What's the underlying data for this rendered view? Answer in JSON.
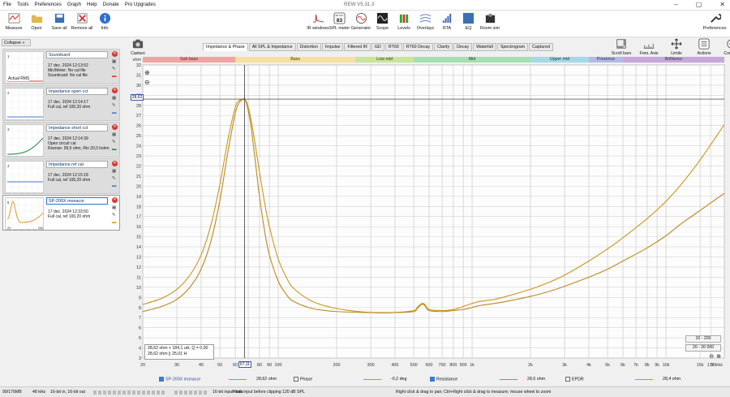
{
  "menu": [
    "File",
    "Tools",
    "Preferences",
    "Graph",
    "Help",
    "Donate",
    "Pro Upgrades"
  ],
  "window_title": "REW V5.31.3",
  "toolbar_left": [
    {
      "label": "Measure",
      "icon": "microphone-icon"
    },
    {
      "label": "Open",
      "icon": "folder-icon"
    },
    {
      "label": "Save all",
      "icon": "save-icon"
    },
    {
      "label": "Remove all",
      "icon": "remove-all-icon"
    },
    {
      "label": "Info",
      "icon": "info-icon"
    }
  ],
  "toolbar_center": [
    {
      "label": "IR windows",
      "icon": "ir-windows-icon"
    },
    {
      "label": "SPL meter",
      "icon": "spl-meter-icon",
      "value": "83",
      "tag": "dB SPL"
    },
    {
      "label": "Generator",
      "icon": "generator-icon"
    },
    {
      "label": "Scope",
      "icon": "scope-icon"
    },
    {
      "label": "Levels",
      "icon": "levels-icon"
    },
    {
      "label": "Overlays",
      "icon": "overlays-icon"
    },
    {
      "label": "RTA",
      "icon": "rta-icon"
    },
    {
      "label": "EQ",
      "icon": "eq-icon"
    },
    {
      "label": "Room sim",
      "icon": "room-sim-icon"
    }
  ],
  "preferences_label": "Preferences",
  "collapse_label": "Collapse «",
  "measurements": [
    {
      "name": "Soundcard",
      "info": "17 dec. 2024 12:13:52\nMic/Meter: No cal file\nSoundcard: No cal file",
      "selected": false
    },
    {
      "name": "Impedance open cct",
      "info": "17 dec. 2024 12:14:17\nFull cal, ref 100,20 ohm",
      "selected": false
    },
    {
      "name": "Impedance short cct",
      "info": "17 dec. 2024 12:14:39\nOpen circuit cal\nRsense: 99,5 ohm, Rin 20,0 kohm",
      "selected": false
    },
    {
      "name": "Impedance ref cal",
      "info": "17 dec. 2024 12:15:18\nFull cal, ref 100,20 ohm",
      "selected": false
    },
    {
      "name": "SP-200X monacor",
      "info": "17 dec. 2024 12:33:50\nFull cal, ref 100,20 ohm",
      "selected": true
    }
  ],
  "thumb_label": "Actual RMS",
  "thumb_axis": [
    "20",
    "20k"
  ],
  "capture_label": "Capture",
  "tabs": [
    "Impedance & Phase",
    "All SPL & Impedance",
    "Distortion",
    "Impulse",
    "Filtered IR",
    "GD",
    "RT60",
    "RT60 Decay",
    "Clarity",
    "Decay",
    "Waterfall",
    "Spectrogram",
    "Captured"
  ],
  "active_tab": "Impedance & Phase",
  "right_buttons": [
    {
      "label": "Scroll bars",
      "icon": "scrollbars-icon"
    },
    {
      "label": "Freq. Axis",
      "icon": "freq-axis-icon"
    },
    {
      "label": "Limits",
      "icon": "limits-icon"
    },
    {
      "label": "Actions",
      "icon": "actions-icon"
    },
    {
      "label": "Controls",
      "icon": "controls-icon"
    }
  ],
  "bands": [
    {
      "label": "Sub bass",
      "f1": 20,
      "f2": 60,
      "color": "#f4a3a3"
    },
    {
      "label": "Bass",
      "f1": 60,
      "f2": 250,
      "color": "#f5e19b"
    },
    {
      "label": "Low mid",
      "f1": 250,
      "f2": 500,
      "color": "#c9e59a"
    },
    {
      "label": "Mid",
      "f1": 500,
      "f2": 2000,
      "color": "#a6dfb2"
    },
    {
      "label": "Upper mid",
      "f1": 2000,
      "f2": 4000,
      "color": "#a6d9e6"
    },
    {
      "label": "Presence",
      "f1": 4000,
      "f2": 6000,
      "color": "#b4b9e8"
    },
    {
      "label": "Brilliance",
      "f1": 6000,
      "f2": 20000,
      "color": "#c6a7dc"
    }
  ],
  "chart_data": {
    "type": "line",
    "ylabel": "ohm",
    "xlim": [
      20,
      20000
    ],
    "ylim": [
      3,
      32
    ],
    "x_scale": "log",
    "grid": true,
    "x_ticks": [
      "20",
      "30",
      "40",
      "50",
      "60",
      "70",
      "80",
      "90",
      "100",
      "200",
      "300",
      "400",
      "500",
      "600",
      "700",
      "800",
      "900",
      "1k",
      "2k",
      "3k",
      "4k",
      "5k",
      "6k",
      "7k",
      "8k",
      "9k",
      "10k",
      "15k",
      "17k",
      "20kHz"
    ],
    "x_tick_values": [
      20,
      30,
      40,
      50,
      60,
      70,
      80,
      90,
      100,
      200,
      300,
      400,
      500,
      600,
      700,
      800,
      900,
      1000,
      2000,
      3000,
      4000,
      5000,
      6000,
      7000,
      8000,
      9000,
      10000,
      15000,
      17000,
      20000
    ],
    "y_ticks": [
      3,
      4,
      5,
      6,
      7,
      8,
      9,
      10,
      11,
      12,
      13,
      14,
      15,
      16,
      17,
      18,
      19,
      20,
      21,
      22,
      23,
      24,
      25,
      26,
      27,
      28,
      29,
      30,
      31,
      32
    ],
    "series": [
      {
        "name": "SP-200X monacor",
        "color": "#c9971e",
        "x": [
          20,
          25,
          30,
          35,
          40,
          45,
          50,
          55,
          60,
          63,
          66,
          67.1,
          69,
          72,
          76,
          80,
          85,
          90,
          100,
          110,
          120,
          150,
          200,
          300,
          400,
          500,
          520,
          550,
          570,
          600,
          700,
          800,
          900,
          1000,
          1100,
          1300,
          1500,
          2000,
          2500,
          3000,
          4000,
          5000,
          6000,
          8000,
          10000,
          12000,
          15000,
          20000
        ],
        "y": [
          8.3,
          8.9,
          9.8,
          11.2,
          13.2,
          16.2,
          20.2,
          24.6,
          27.8,
          28.5,
          28.62,
          28.6,
          28.2,
          26.8,
          24.2,
          21.4,
          18.4,
          16.0,
          12.8,
          11.0,
          9.9,
          8.6,
          7.9,
          7.5,
          7.5,
          7.7,
          8.0,
          8.4,
          8.3,
          7.8,
          7.7,
          7.8,
          8.1,
          8.4,
          8.6,
          8.8,
          9.1,
          9.8,
          10.5,
          11.2,
          12.6,
          13.8,
          14.9,
          16.8,
          18.5,
          20.2,
          22.6,
          26.1
        ]
      },
      {
        "name": "Resistance",
        "color": "#b98a22",
        "x": [
          20,
          25,
          30,
          35,
          40,
          45,
          50,
          55,
          60,
          63,
          66,
          67.1,
          69,
          72,
          76,
          80,
          85,
          90,
          100,
          110,
          120,
          150,
          200,
          300,
          400,
          500,
          520,
          550,
          570,
          600,
          700,
          800,
          900,
          1000,
          1100,
          1300,
          1500,
          2000,
          2500,
          3000,
          4000,
          5000,
          6000,
          8000,
          10000,
          12000,
          15000,
          20000
        ],
        "y": [
          7.6,
          8.1,
          8.8,
          10.0,
          11.8,
          14.6,
          18.6,
          23.4,
          27.2,
          28.3,
          28.6,
          28.6,
          28.0,
          26.2,
          22.6,
          19.0,
          15.6,
          13.2,
          10.6,
          9.3,
          8.6,
          7.9,
          7.6,
          7.5,
          7.5,
          7.6,
          7.9,
          8.3,
          8.2,
          7.7,
          7.6,
          7.7,
          7.8,
          8.0,
          8.2,
          8.4,
          8.6,
          9.1,
          9.6,
          10.1,
          11.0,
          11.8,
          12.6,
          13.9,
          15.1,
          16.3,
          17.6,
          19.3
        ]
      }
    ]
  },
  "cursor": {
    "y_label": "28,62",
    "x_label": "67,11"
  },
  "readout": [
    "28,62 ohm + 184,1 uH, Q = 0,00",
    "28,62 ohm || 25,01 H"
  ],
  "range_buttons": [
    "10 - 200",
    "20 - 20 000"
  ],
  "legend": [
    {
      "name": "SP-200X monacor",
      "value": "28,62 ohm",
      "checked": true,
      "color": "#c9971e"
    },
    {
      "name": "Phase",
      "value": "-0,2 deg",
      "checked": false,
      "color": "#c9971e"
    },
    {
      "name": "Resistance",
      "value": "28,6 ohm",
      "checked": true,
      "color": "#b98a22"
    },
    {
      "name": "EPDR",
      "value": "28,4 ohm",
      "checked": false,
      "color": "#c9971e"
    }
  ],
  "status": [
    "99/176MB",
    "48 kHz",
    "16-bit in, 16-bit out",
    "16-bit input data",
    "Peak input before clipping 120 dB SPL",
    "Right click & drag to pan; Ctrl+Right click & drag to measure; mouse wheel to zoom"
  ]
}
